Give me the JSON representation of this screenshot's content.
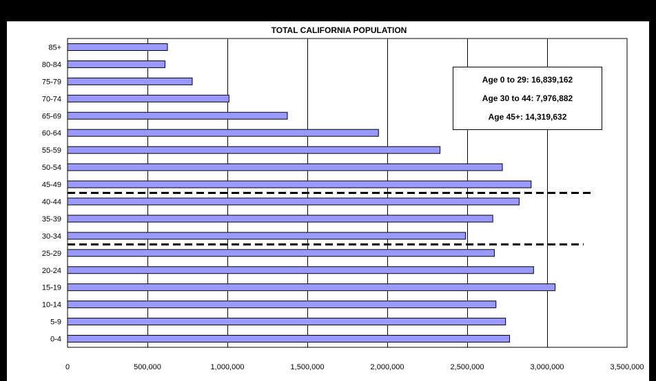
{
  "colors": {
    "background": "#000000",
    "panel": "#ffffff",
    "bar_fill": "#9999ff",
    "bar_stroke": "#000000",
    "gridline": "#000000",
    "divider": "#000000"
  },
  "annotation_box": {
    "lines": [
      "Age 0 to 29:  16,839,162",
      "Age 30 to 44:  7,976,882",
      "Age 45+:  14,319,632"
    ]
  },
  "chart_data": {
    "type": "bar",
    "orientation": "horizontal",
    "title": "TOTAL CALIFORNIA POPULATION",
    "xlabel": "",
    "ylabel": "",
    "categories": [
      "0-4",
      "5-9",
      "10-14",
      "15-19",
      "20-24",
      "25-29",
      "30-34",
      "35-39",
      "40-44",
      "45-49",
      "50-54",
      "55-59",
      "60-64",
      "65-69",
      "70-74",
      "75-79",
      "80-84",
      "85+"
    ],
    "values": [
      2765000,
      2740000,
      2680000,
      3050000,
      2915000,
      2670000,
      2490000,
      2660000,
      2825000,
      2900000,
      2720000,
      2330000,
      1945000,
      1375000,
      1010000,
      780000,
      610000,
      625000
    ],
    "xlim": [
      0,
      3500000
    ],
    "xticks": [
      0,
      500000,
      1000000,
      1500000,
      2000000,
      2500000,
      3000000,
      3500000
    ],
    "xtick_labels": [
      "0",
      "500,000",
      "1,000,000",
      "1,500,000",
      "2,000,000",
      "2,500,000",
      "3,000,000",
      "3,500,000"
    ],
    "grid": "vertical",
    "legend": "none",
    "dashed_dividers": [
      {
        "between": [
          "25-29",
          "30-34"
        ]
      },
      {
        "between": [
          "40-44",
          "45-49"
        ]
      }
    ]
  }
}
